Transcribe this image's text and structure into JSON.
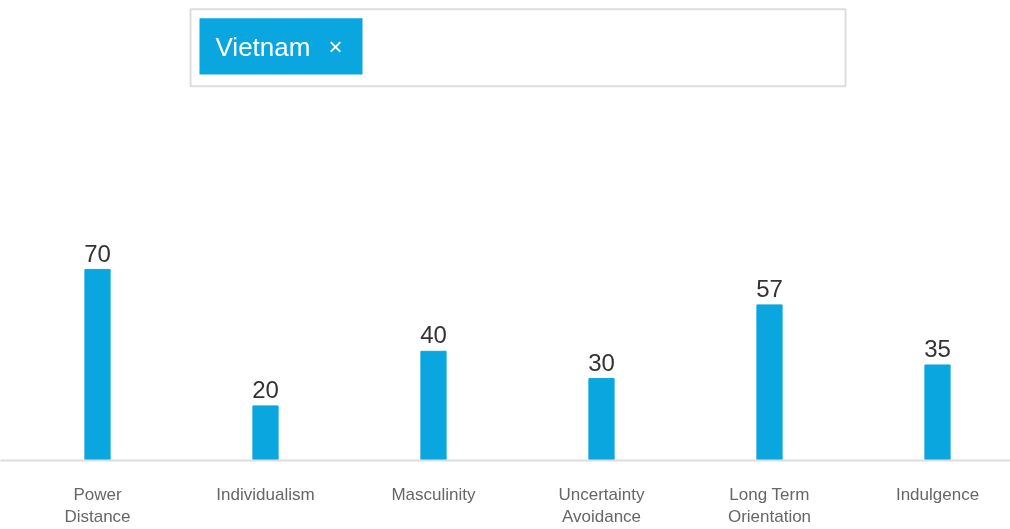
{
  "chart_data": {
    "type": "bar",
    "categories": [
      "Power Distance",
      "Individualism",
      "Masculinity",
      "Uncertainty Avoidance",
      "Long Term Orientation",
      "Indulgence"
    ],
    "series": [
      {
        "name": "Vietnam",
        "color": "#0aa6df",
        "values": [
          70,
          20,
          40,
          30,
          57,
          35
        ]
      }
    ],
    "data_labels": true,
    "legend": "top",
    "grid": false,
    "annotations": [
      "×"
    ]
  }
}
